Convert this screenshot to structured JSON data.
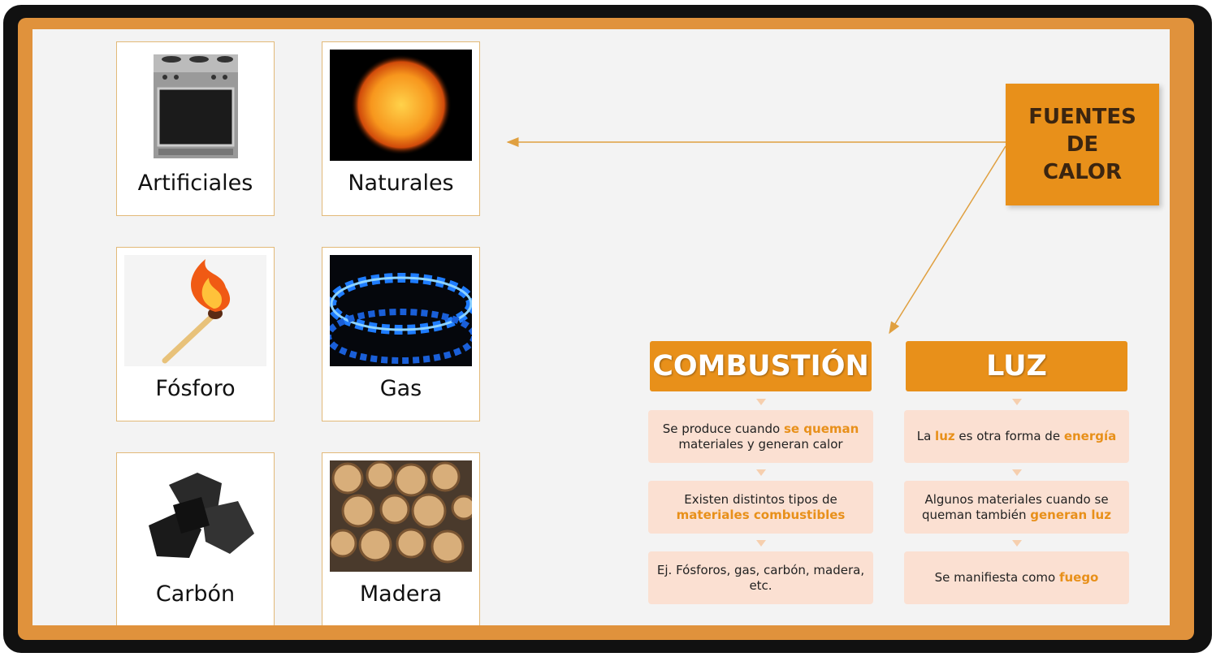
{
  "title": "FUENTES DE CALOR",
  "cards": [
    {
      "label": "Artificiales"
    },
    {
      "label": "Naturales"
    },
    {
      "label": "Fósforo"
    },
    {
      "label": "Gas"
    },
    {
      "label": "Carbón"
    },
    {
      "label": "Madera"
    }
  ],
  "columns": [
    {
      "heading": "COMBUSTIÓN",
      "items": [
        {
          "parts": [
            {
              "text": "Se produce cuando "
            },
            {
              "text": "se queman",
              "accent": true
            },
            {
              "text": " materiales y generan calor"
            }
          ]
        },
        {
          "parts": [
            {
              "text": "Existen distintos tipos de "
            },
            {
              "text": "materiales combustibles",
              "accent": true
            }
          ]
        },
        {
          "parts": [
            {
              "text": "Ej. Fósforos, gas, carbón, madera, etc."
            }
          ]
        }
      ]
    },
    {
      "heading": "LUZ",
      "items": [
        {
          "parts": [
            {
              "text": "La "
            },
            {
              "text": "luz",
              "accent": true
            },
            {
              "text": " es otra forma de "
            },
            {
              "text": "energía",
              "accent": true
            }
          ]
        },
        {
          "parts": [
            {
              "text": "Algunos materiales cuando se queman también "
            },
            {
              "text": "generan luz",
              "accent": true
            }
          ]
        },
        {
          "parts": [
            {
              "text": "Se manifiesta como "
            },
            {
              "text": "fuego",
              "accent": true
            }
          ]
        }
      ]
    }
  ]
}
